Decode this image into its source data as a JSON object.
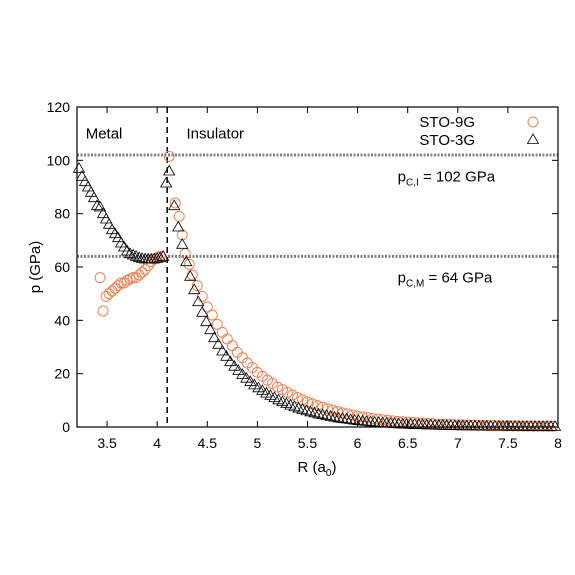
{
  "chart_data": {
    "type": "scatter",
    "title": "",
    "xlabel": {
      "main": "R (a",
      "sub": "0",
      "end": ")"
    },
    "ylabel": "p (GPa)",
    "xlim": [
      3.2,
      8
    ],
    "ylim": [
      0,
      120
    ],
    "xticks": [
      3.5,
      4,
      4.5,
      5,
      5.5,
      6,
      6.5,
      7,
      7.5,
      8
    ],
    "xtick_labels": [
      "3.5",
      "4",
      "4.5",
      "5",
      "5.5",
      "6",
      "6.5",
      "7",
      "7.5",
      "8"
    ],
    "yticks": [
      0,
      20,
      40,
      60,
      80,
      100,
      120
    ],
    "ytick_labels": [
      "0",
      "20",
      "40",
      "60",
      "80",
      "100",
      "120"
    ],
    "grid": false,
    "legend_position": "top-right",
    "series": [
      {
        "name": "STO-9G",
        "marker": "circle",
        "color": "#f08050",
        "points": [
          [
            3.43,
            56
          ],
          [
            3.46,
            43.5
          ],
          [
            3.49,
            49
          ],
          [
            3.52,
            50
          ],
          [
            3.55,
            51
          ],
          [
            3.58,
            52
          ],
          [
            3.61,
            53
          ],
          [
            3.64,
            54
          ],
          [
            3.67,
            54
          ],
          [
            3.7,
            55
          ],
          [
            3.73,
            55.5
          ],
          [
            3.76,
            56
          ],
          [
            3.79,
            56
          ],
          [
            3.82,
            57
          ],
          [
            3.85,
            58
          ],
          [
            3.88,
            59
          ],
          [
            3.91,
            60.5
          ],
          [
            3.94,
            62
          ],
          [
            3.97,
            63
          ],
          [
            4.0,
            63.5
          ],
          [
            4.03,
            64
          ],
          [
            4.12,
            101.5
          ],
          [
            4.18,
            84
          ],
          [
            4.22,
            79
          ],
          [
            4.25,
            72
          ],
          [
            4.28,
            65
          ],
          [
            4.32,
            61
          ],
          [
            4.35,
            57
          ],
          [
            4.4,
            53
          ],
          [
            4.45,
            49
          ],
          [
            4.5,
            45
          ],
          [
            4.55,
            42
          ],
          [
            4.6,
            38.5
          ],
          [
            4.65,
            35.5
          ],
          [
            4.7,
            33
          ],
          [
            4.75,
            30.5
          ],
          [
            4.8,
            28
          ],
          [
            4.85,
            26
          ],
          [
            4.9,
            24
          ],
          [
            4.95,
            22.3
          ],
          [
            5.0,
            20.5
          ],
          [
            5.05,
            19
          ],
          [
            5.1,
            17.6
          ],
          [
            5.15,
            16.3
          ],
          [
            5.2,
            15
          ],
          [
            5.25,
            14
          ],
          [
            5.3,
            13
          ],
          [
            5.35,
            12
          ],
          [
            5.4,
            11
          ],
          [
            5.45,
            10.2
          ],
          [
            5.5,
            9.4
          ],
          [
            5.55,
            8.7
          ],
          [
            5.6,
            8
          ],
          [
            5.65,
            7.4
          ],
          [
            5.7,
            6.8
          ],
          [
            5.75,
            6.3
          ],
          [
            5.8,
            5.8
          ],
          [
            5.85,
            5.3
          ],
          [
            5.9,
            4.9
          ],
          [
            5.95,
            4.5
          ],
          [
            6.0,
            4.1
          ],
          [
            6.05,
            3.8
          ],
          [
            6.1,
            3.5
          ],
          [
            6.15,
            3.2
          ],
          [
            6.2,
            3.0
          ],
          [
            6.25,
            2.7
          ],
          [
            6.3,
            2.5
          ],
          [
            6.35,
            2.3
          ],
          [
            6.4,
            2.1
          ],
          [
            6.45,
            2.0
          ],
          [
            6.5,
            1.8
          ],
          [
            6.55,
            1.7
          ],
          [
            6.6,
            1.5
          ],
          [
            6.65,
            1.4
          ],
          [
            6.7,
            1.3
          ],
          [
            6.75,
            1.2
          ],
          [
            6.8,
            1.1
          ],
          [
            6.85,
            1.0
          ],
          [
            6.9,
            0.95
          ],
          [
            6.95,
            0.9
          ],
          [
            7.0,
            0.8
          ],
          [
            7.05,
            0.75
          ],
          [
            7.1,
            0.7
          ],
          [
            7.15,
            0.65
          ],
          [
            7.2,
            0.6
          ],
          [
            7.25,
            0.55
          ],
          [
            7.3,
            0.5
          ],
          [
            7.35,
            0.48
          ],
          [
            7.4,
            0.45
          ],
          [
            7.45,
            0.42
          ],
          [
            7.5,
            0.4
          ],
          [
            7.55,
            0.38
          ],
          [
            7.6,
            0.36
          ],
          [
            7.65,
            0.34
          ],
          [
            7.7,
            0.32
          ],
          [
            7.75,
            0.3
          ],
          [
            7.8,
            0.28
          ],
          [
            7.85,
            0.27
          ],
          [
            7.9,
            0.26
          ],
          [
            7.95,
            0.25
          ]
        ]
      },
      {
        "name": "STO-3G",
        "marker": "triangle",
        "color": "#000000",
        "points": [
          [
            3.22,
            97
          ],
          [
            3.25,
            94
          ],
          [
            3.28,
            92
          ],
          [
            3.31,
            90
          ],
          [
            3.34,
            88
          ],
          [
            3.37,
            86
          ],
          [
            3.4,
            83
          ],
          [
            3.43,
            82.5
          ],
          [
            3.46,
            80
          ],
          [
            3.49,
            78
          ],
          [
            3.52,
            76
          ],
          [
            3.55,
            74
          ],
          [
            3.58,
            72.5
          ],
          [
            3.61,
            71
          ],
          [
            3.64,
            69
          ],
          [
            3.67,
            67.5
          ],
          [
            3.7,
            66
          ],
          [
            3.73,
            65
          ],
          [
            3.76,
            64.5
          ],
          [
            3.79,
            64
          ],
          [
            3.82,
            63.5
          ],
          [
            3.85,
            63.2
          ],
          [
            3.88,
            63
          ],
          [
            3.91,
            63
          ],
          [
            3.94,
            63
          ],
          [
            3.97,
            63
          ],
          [
            4.0,
            63.2
          ],
          [
            4.03,
            63.5
          ],
          [
            4.06,
            64
          ],
          [
            4.09,
            91.5
          ],
          [
            4.12,
            96
          ],
          [
            4.17,
            83
          ],
          [
            4.21,
            75
          ],
          [
            4.25,
            68.5
          ],
          [
            4.29,
            62
          ],
          [
            4.33,
            56.5
          ],
          [
            4.37,
            51.5
          ],
          [
            4.41,
            47
          ],
          [
            4.45,
            43
          ],
          [
            4.49,
            39.5
          ],
          [
            4.53,
            36.5
          ],
          [
            4.57,
            33.5
          ],
          [
            4.61,
            31
          ],
          [
            4.65,
            28.5
          ],
          [
            4.69,
            26.5
          ],
          [
            4.73,
            24.5
          ],
          [
            4.77,
            22.8
          ],
          [
            4.81,
            21.2
          ],
          [
            4.85,
            19.7
          ],
          [
            4.89,
            18.3
          ],
          [
            4.93,
            17
          ],
          [
            4.97,
            15.8
          ],
          [
            5.01,
            14.7
          ],
          [
            5.05,
            13.7
          ],
          [
            5.09,
            12.7
          ],
          [
            5.13,
            11.8
          ],
          [
            5.17,
            11
          ],
          [
            5.21,
            10.2
          ],
          [
            5.25,
            9.5
          ],
          [
            5.29,
            8.8
          ],
          [
            5.33,
            8.2
          ],
          [
            5.37,
            7.6
          ],
          [
            5.41,
            7.1
          ],
          [
            5.45,
            6.6
          ],
          [
            5.49,
            6.1
          ],
          [
            5.53,
            5.7
          ],
          [
            5.57,
            5.3
          ],
          [
            5.61,
            4.9
          ],
          [
            5.65,
            4.6
          ],
          [
            5.69,
            4.3
          ],
          [
            5.73,
            4.0
          ],
          [
            5.77,
            3.7
          ],
          [
            5.81,
            3.4
          ],
          [
            5.85,
            3.2
          ],
          [
            5.89,
            3.0
          ],
          [
            5.93,
            2.8
          ],
          [
            5.97,
            2.6
          ],
          [
            6.01,
            2.4
          ],
          [
            6.05,
            2.25
          ],
          [
            6.09,
            2.1
          ],
          [
            6.13,
            1.95
          ],
          [
            6.17,
            1.8
          ],
          [
            6.21,
            1.7
          ],
          [
            6.25,
            1.6
          ],
          [
            6.29,
            1.5
          ],
          [
            6.33,
            1.4
          ],
          [
            6.37,
            1.3
          ],
          [
            6.41,
            1.2
          ],
          [
            6.45,
            1.15
          ],
          [
            6.49,
            1.1
          ],
          [
            6.53,
            1.0
          ],
          [
            6.57,
            0.95
          ],
          [
            6.61,
            0.9
          ],
          [
            6.65,
            0.85
          ],
          [
            6.69,
            0.8
          ],
          [
            6.73,
            0.75
          ],
          [
            6.77,
            0.7
          ],
          [
            6.81,
            0.66
          ],
          [
            6.85,
            0.62
          ],
          [
            6.89,
            0.58
          ],
          [
            6.93,
            0.55
          ],
          [
            6.97,
            0.52
          ],
          [
            7.01,
            0.5
          ],
          [
            7.05,
            0.48
          ],
          [
            7.09,
            0.46
          ],
          [
            7.13,
            0.44
          ],
          [
            7.17,
            0.42
          ],
          [
            7.21,
            0.4
          ],
          [
            7.25,
            0.38
          ],
          [
            7.29,
            0.36
          ],
          [
            7.33,
            0.35
          ],
          [
            7.37,
            0.34
          ],
          [
            7.41,
            0.33
          ],
          [
            7.45,
            0.32
          ],
          [
            7.49,
            0.31
          ],
          [
            7.53,
            0.3
          ],
          [
            7.57,
            0.29
          ],
          [
            7.61,
            0.28
          ],
          [
            7.65,
            0.27
          ],
          [
            7.69,
            0.26
          ],
          [
            7.73,
            0.25
          ],
          [
            7.77,
            0.24
          ],
          [
            7.81,
            0.23
          ],
          [
            7.85,
            0.22
          ],
          [
            7.89,
            0.21
          ],
          [
            7.93,
            0.2
          ],
          [
            7.97,
            0.2
          ]
        ]
      }
    ],
    "reference_lines": [
      {
        "orientation": "horizontal",
        "value": 102,
        "style": "dotted-thick",
        "color": "#808080"
      },
      {
        "orientation": "horizontal",
        "value": 64,
        "style": "dotted-thick",
        "color": "#808080"
      },
      {
        "orientation": "vertical",
        "value": 4.1,
        "style": "dashed",
        "color": "#000000"
      }
    ],
    "annotations": [
      {
        "id": "metal",
        "text": "Metal",
        "x": 3.47,
        "y": 110
      },
      {
        "id": "insulator",
        "text": "Insulator",
        "x": 4.58,
        "y": 110
      },
      {
        "id": "pci",
        "main": "p",
        "sub": "C,I",
        "rest": " = 102 GPa",
        "x": 6.4,
        "y": 94
      },
      {
        "id": "pcm",
        "main": "p",
        "sub": "C,M",
        "rest": " = 64 GPa",
        "x": 6.4,
        "y": 56
      }
    ]
  }
}
